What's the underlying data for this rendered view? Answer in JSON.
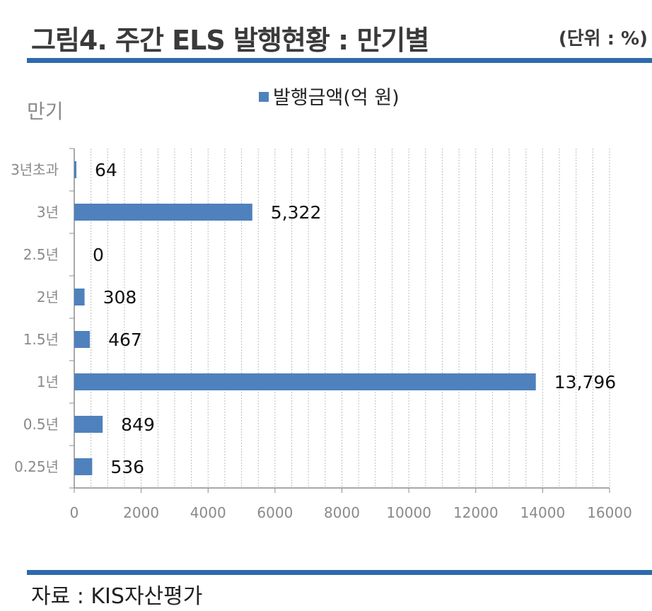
{
  "header": {
    "title": "그림4. 주간 ELS 발행현황 : 만기별",
    "unit": "(단위 : %)"
  },
  "footer": {
    "source": "자료 : KIS자산평가"
  },
  "colors": {
    "accent_rule": "#2e6aac",
    "bar": "#4f81bd"
  },
  "chart_data": {
    "type": "bar",
    "orientation": "horizontal",
    "title": "",
    "ylabel": "만기",
    "xlabel": "",
    "categories": [
      "3년초과",
      "3년",
      "2.5년",
      "2년",
      "1.5년",
      "1년",
      "0.5년",
      "0.25년"
    ],
    "series": [
      {
        "name": "발행금액(억 원)",
        "values": [
          64,
          5322,
          0,
          308,
          467,
          13796,
          849,
          536
        ],
        "labels": [
          "64",
          "5,322",
          "0",
          "308",
          "467",
          "13,796",
          "849",
          "536"
        ]
      }
    ],
    "xlim": [
      0,
      16000
    ],
    "xticks": [
      0,
      2000,
      4000,
      6000,
      8000,
      10000,
      12000,
      14000,
      16000
    ],
    "grid": "vertical-dashed",
    "legend_position": "top"
  }
}
